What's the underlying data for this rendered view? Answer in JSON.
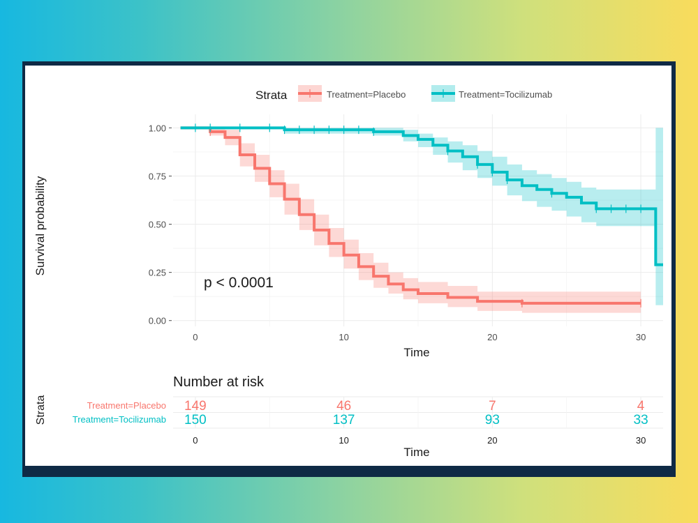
{
  "chart_data": [
    {
      "type": "line",
      "subtype": "kaplan-meier",
      "legend": {
        "title": "Strata",
        "position": "top",
        "entries": [
          "Treatment=Placebo",
          "Treatment=Tocilizumab"
        ]
      },
      "xlabel": "Time",
      "ylabel": "Survival probability",
      "xlim": [
        -1.5,
        31.5
      ],
      "ylim": [
        -0.03,
        1.07
      ],
      "x_ticks": [
        0,
        10,
        20,
        30
      ],
      "y_ticks": [
        0.0,
        0.25,
        0.5,
        0.75,
        1.0
      ],
      "y_tick_labels": [
        "0.00",
        "0.25",
        "0.50",
        "0.75",
        "1.00"
      ],
      "annotation": "p < 0.0001",
      "grid": true,
      "series": [
        {
          "name": "Treatment=Placebo",
          "color": "#f8766d",
          "steps": [
            [
              -1,
              1.0
            ],
            [
              1,
              0.98
            ],
            [
              2,
              0.95
            ],
            [
              3,
              0.86
            ],
            [
              4,
              0.79
            ],
            [
              5,
              0.71
            ],
            [
              6,
              0.63
            ],
            [
              7,
              0.55
            ],
            [
              8,
              0.47
            ],
            [
              9,
              0.4
            ],
            [
              10,
              0.34
            ],
            [
              11,
              0.28
            ],
            [
              12,
              0.23
            ],
            [
              13,
              0.19
            ],
            [
              14,
              0.16
            ],
            [
              15,
              0.14
            ],
            [
              17,
              0.12
            ],
            [
              19,
              0.1
            ],
            [
              22,
              0.09
            ],
            [
              30,
              0.09
            ]
          ],
          "ci": [
            [
              -1,
              1.0,
              1.0
            ],
            [
              1,
              0.96,
              1.0
            ],
            [
              2,
              0.91,
              0.99
            ],
            [
              3,
              0.8,
              0.92
            ],
            [
              4,
              0.72,
              0.86
            ],
            [
              5,
              0.64,
              0.78
            ],
            [
              6,
              0.55,
              0.71
            ],
            [
              7,
              0.47,
              0.63
            ],
            [
              8,
              0.39,
              0.55
            ],
            [
              9,
              0.33,
              0.48
            ],
            [
              10,
              0.27,
              0.42
            ],
            [
              11,
              0.21,
              0.35
            ],
            [
              12,
              0.17,
              0.3
            ],
            [
              13,
              0.14,
              0.25
            ],
            [
              14,
              0.11,
              0.22
            ],
            [
              15,
              0.09,
              0.2
            ],
            [
              17,
              0.07,
              0.18
            ],
            [
              19,
              0.05,
              0.15
            ],
            [
              22,
              0.04,
              0.15
            ],
            [
              30,
              0.04,
              0.15
            ]
          ],
          "censor_x": [
            1,
            22,
            30
          ]
        },
        {
          "name": "Treatment=Tocilizumab",
          "color": "#00bfc4",
          "steps": [
            [
              -1,
              1.0
            ],
            [
              6,
              0.99
            ],
            [
              12,
              0.98
            ],
            [
              14,
              0.96
            ],
            [
              15,
              0.94
            ],
            [
              16,
              0.91
            ],
            [
              17,
              0.88
            ],
            [
              18,
              0.85
            ],
            [
              19,
              0.81
            ],
            [
              20,
              0.77
            ],
            [
              21,
              0.73
            ],
            [
              22,
              0.7
            ],
            [
              23,
              0.68
            ],
            [
              24,
              0.66
            ],
            [
              25,
              0.64
            ],
            [
              26,
              0.61
            ],
            [
              27,
              0.58
            ],
            [
              31,
              0.29
            ],
            [
              31.5,
              0.29
            ]
          ],
          "ci": [
            [
              -1,
              1.0,
              1.0
            ],
            [
              6,
              0.97,
              1.0
            ],
            [
              12,
              0.96,
              1.0
            ],
            [
              14,
              0.93,
              0.99
            ],
            [
              15,
              0.9,
              0.97
            ],
            [
              16,
              0.86,
              0.95
            ],
            [
              17,
              0.82,
              0.93
            ],
            [
              18,
              0.78,
              0.91
            ],
            [
              19,
              0.74,
              0.88
            ],
            [
              20,
              0.7,
              0.85
            ],
            [
              21,
              0.65,
              0.81
            ],
            [
              22,
              0.62,
              0.78
            ],
            [
              23,
              0.59,
              0.76
            ],
            [
              24,
              0.57,
              0.74
            ],
            [
              25,
              0.54,
              0.72
            ],
            [
              26,
              0.51,
              0.69
            ],
            [
              27,
              0.49,
              0.68
            ],
            [
              31,
              0.08,
              1.0
            ],
            [
              31.5,
              0.08,
              1.0
            ]
          ],
          "censor_x": [
            0,
            1,
            3,
            5,
            6,
            7,
            8,
            9,
            10,
            11,
            12,
            17,
            19,
            20,
            21,
            24,
            27,
            28,
            29,
            30
          ]
        }
      ]
    },
    {
      "type": "table",
      "title": "Number at risk",
      "ylabel": "Strata",
      "xlabel": "Time",
      "x_ticks": [
        0,
        10,
        20,
        30
      ],
      "rows": [
        {
          "name": "Treatment=Placebo",
          "color": "#f8766d",
          "values": [
            "149",
            "46",
            "7",
            "4"
          ]
        },
        {
          "name": "Treatment=Tocilizumab",
          "color": "#00bfc4",
          "values": [
            "150",
            "137",
            "93",
            "33"
          ]
        }
      ]
    }
  ]
}
